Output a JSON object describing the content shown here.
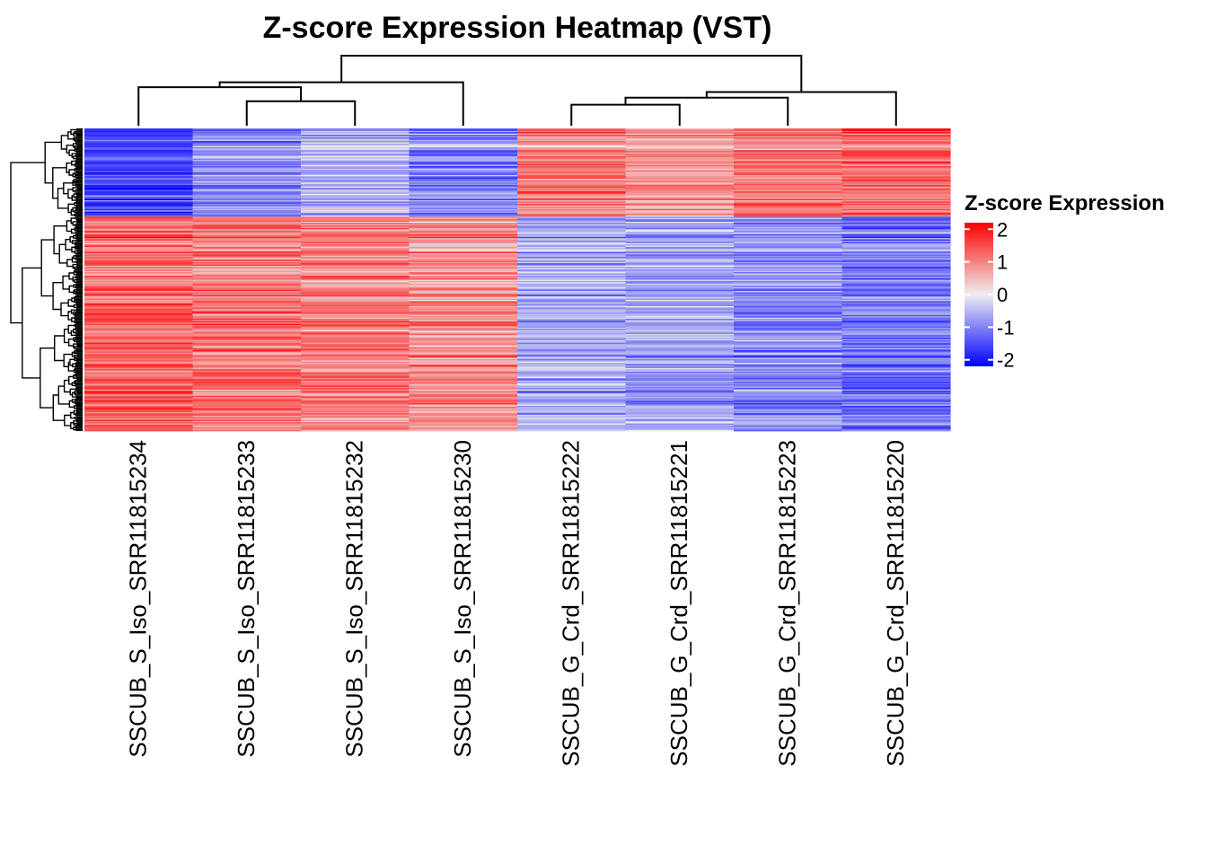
{
  "chart_data": {
    "type": "heatmap",
    "title": "Z-score Expression Heatmap (VST)",
    "columns": [
      "SSCUB_S_Iso_SRR11815234",
      "SSCUB_S_Iso_SRR11815233",
      "SSCUB_S_Iso_SRR11815232",
      "SSCUB_S_Iso_SRR11815230",
      "SSCUB_G_Crd_SRR11815222",
      "SSCUB_G_Crd_SRR11815221",
      "SSCUB_G_Crd_SRR11815223",
      "SSCUB_G_Crd_SRR11815220"
    ],
    "legend": {
      "title": "Z-score Expression",
      "ticks": [
        2,
        1,
        0,
        -1,
        -2
      ],
      "tick_labels": [
        "2",
        "1",
        "0",
        "-1",
        "-2"
      ],
      "range": [
        -2.2,
        2.2
      ],
      "colors": {
        "low": "#0000ff",
        "mid": "#eeeeee",
        "high": "#ff0000"
      }
    },
    "row_blocks": [
      {
        "name": "block-top",
        "row_fraction": 0.29,
        "column_means": [
          -1.5,
          -0.9,
          -0.6,
          -1.0,
          1.1,
          0.8,
          1.1,
          1.2
        ]
      },
      {
        "name": "block-bottom",
        "row_fraction": 0.71,
        "column_means": [
          1.3,
          1.1,
          1.0,
          0.9,
          -0.6,
          -0.7,
          -0.9,
          -1.1
        ]
      }
    ],
    "row_count_estimate": 240,
    "column_dendrogram": {
      "merges": [
        [
          1,
          2
        ],
        [
          0,
          "m0"
        ],
        [
          "m1",
          3
        ],
        [
          4,
          5
        ],
        [
          "m3",
          6
        ],
        [
          "m4",
          7
        ],
        [
          "m2",
          "m5"
        ]
      ],
      "heights": [
        0.35,
        0.55,
        0.62,
        0.3,
        0.4,
        0.48,
        1.0
      ]
    }
  }
}
